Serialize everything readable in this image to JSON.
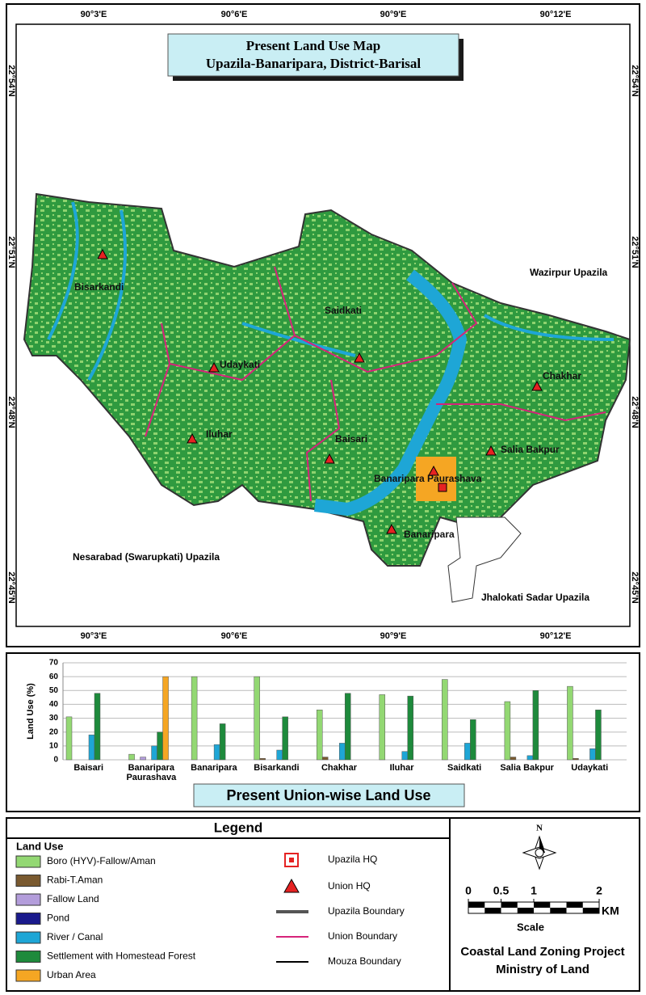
{
  "map": {
    "title": "Present Land Use  Map",
    "subtitle": "Upazila-Banaripara, District-Barisal",
    "longitudes": [
      "90°3'E",
      "90°6'E",
      "90°9'E",
      "90°12'E"
    ],
    "latitudes": [
      "22°54'N",
      "22°51'N",
      "22°48'N",
      "22°45'N"
    ],
    "neighbors": [
      "Wazirpur Upazila",
      "Nesarabad (Swarupkati) Upazila",
      "Jhalokati Sadar Upazila"
    ],
    "unions": [
      "Bisarkandi",
      "Saidkati",
      "Udaykati",
      "Chakhar",
      "Iluhar",
      "Baisari",
      "Salia Bakpur",
      "Banaripara Paurashava",
      "Banaripara"
    ]
  },
  "chart_data": {
    "type": "bar",
    "title": "Present Union-wise Land Use",
    "y_label": "Land Use (%)",
    "categories": [
      "Baisari",
      "Banaripara Paurashava",
      "Banaripara",
      "Bisarkandi",
      "Chakhar",
      "Iluhar",
      "Saidkati",
      "Salia Bakpur",
      "Udaykati"
    ],
    "series": [
      {
        "name": "Boro (HYV)-Fallow/Aman",
        "color": "#93d873",
        "values": [
          31,
          4,
          60,
          60,
          36,
          47,
          58,
          42,
          53
        ]
      },
      {
        "name": "Rabi-T.Aman",
        "color": "#7a5a30",
        "values": [
          0,
          0,
          0,
          1,
          2,
          0,
          0,
          2,
          1
        ]
      },
      {
        "name": "Fallow Land",
        "color": "#b39ddb",
        "values": [
          0,
          2,
          0,
          0,
          0,
          0,
          0,
          0,
          0
        ]
      },
      {
        "name": "Pond",
        "color": "#1a1a8c",
        "values": [
          0,
          0,
          0,
          0,
          0,
          0,
          0,
          0,
          0
        ]
      },
      {
        "name": "River / Canal",
        "color": "#1ea6d6",
        "values": [
          18,
          10,
          11,
          7,
          12,
          6,
          12,
          3,
          8
        ]
      },
      {
        "name": "Settlement with Homestead Forest",
        "color": "#1e8a3c",
        "values": [
          48,
          20,
          26,
          31,
          48,
          46,
          29,
          50,
          36
        ]
      },
      {
        "name": "Urban Area",
        "color": "#f5a623",
        "values": [
          0,
          60,
          0,
          0,
          0,
          0,
          0,
          0,
          0
        ]
      }
    ],
    "ylim": [
      0,
      70
    ],
    "yticks": [
      0,
      10,
      20,
      30,
      40,
      50,
      60,
      70
    ],
    "grid": true
  },
  "legend": {
    "title": "Legend",
    "section": "Land Use",
    "symbols": [
      "Upazila HQ",
      "Union HQ",
      "Upazila Boundary",
      "Union Boundary",
      "Mouza Boundary"
    ]
  },
  "scale": {
    "ticks": [
      0,
      0.5,
      1,
      2
    ],
    "unit": "KM",
    "label": "Scale"
  },
  "north": "N",
  "credits": [
    "Coastal Land Zoning Project",
    "Ministry of Land"
  ]
}
